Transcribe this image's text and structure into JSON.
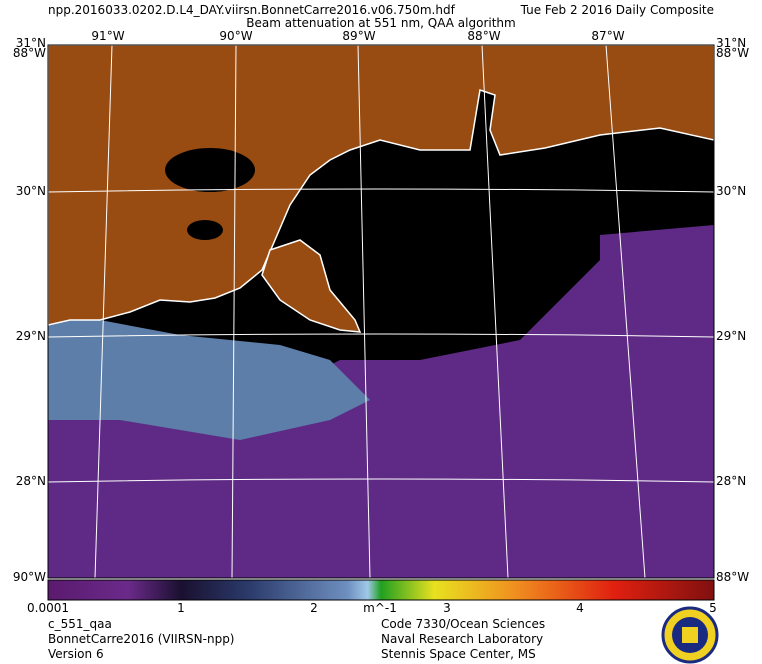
{
  "header": {
    "file": "npp.2016033.0202.D.L4_DAY.viirsn.BonnetCarre2016.v06.750m.hdf",
    "date": "Tue Feb  2 2016 Daily Composite",
    "product": "Beam attenuation at 551 nm, QAA algorithm"
  },
  "map": {
    "longitude_labels": [
      "91°W",
      "90°W",
      "89°W",
      "88°W",
      "87°W"
    ],
    "latitude_labels": [
      "31°N",
      "30°N",
      "29°N",
      "28°N"
    ],
    "corner_labels": [
      "88°W",
      "90°W"
    ]
  },
  "colorbar": {
    "labels": [
      "0.0001",
      "1",
      "2",
      "3",
      "4",
      "5"
    ],
    "unit": "m^-1"
  },
  "footer": {
    "left": [
      "c_551_qaa",
      "BonnetCarre2016 (VIIRSN-npp)",
      "Version 6"
    ],
    "right": [
      "Code 7330/Ocean Sciences",
      "Naval Research Laboratory",
      "Stennis Space Center, MS"
    ]
  }
}
